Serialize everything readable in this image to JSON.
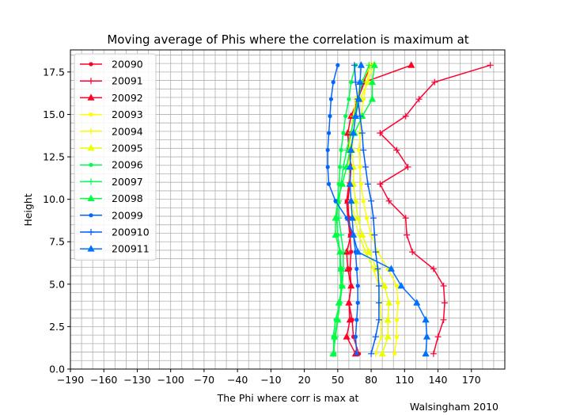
{
  "chart_data": {
    "type": "line",
    "title": "Moving average of Phis where the correlation is maximum at",
    "xlabel": "The Phi where corr is max at",
    "ylabel": "Height",
    "xlim": [
      -190,
      200
    ],
    "ylim": [
      0,
      18.8
    ],
    "x_ticks": [
      -190,
      -160,
      -130,
      -100,
      -70,
      -40,
      -10,
      20,
      50,
      80,
      110,
      140,
      170
    ],
    "y_ticks": [
      0.0,
      2.5,
      5.0,
      7.5,
      10.0,
      12.5,
      15.0,
      17.5
    ],
    "grid": true,
    "legend_position": "upper-left",
    "y": [
      0.9,
      1.9,
      2.9,
      3.9,
      4.9,
      5.9,
      6.9,
      7.9,
      8.9,
      9.9,
      10.9,
      11.9,
      12.9,
      13.9,
      14.9,
      15.9,
      16.9,
      17.9
    ],
    "series": [
      {
        "name": "20090",
        "color": "#ff0029",
        "marker": "dot",
        "x": [
          69,
          64,
          63,
          60,
          62,
          61,
          62,
          61,
          59,
          58,
          60,
          62,
          60,
          62,
          64,
          68,
          73,
          80
        ]
      },
      {
        "name": "20091",
        "color": "#ff0033",
        "marker": "plus",
        "x": [
          136,
          140,
          145,
          146,
          145,
          136,
          117,
          112,
          111,
          96,
          88,
          113,
          103,
          88,
          111,
          123,
          137,
          187
        ]
      },
      {
        "name": "20092",
        "color": "#ff0026",
        "marker": "triangle",
        "x": [
          66,
          58,
          61,
          60,
          62,
          59,
          58,
          62,
          60,
          59,
          61,
          62,
          60,
          59,
          62,
          68,
          74,
          116
        ]
      },
      {
        "name": "20093",
        "color": "#ffff00",
        "marker": "dot",
        "x": [
          101,
          103,
          103,
          104,
          103,
          95,
          86,
          80,
          76,
          73,
          71,
          70,
          69,
          70,
          71,
          73,
          76,
          79
        ]
      },
      {
        "name": "20094",
        "color": "#f5ff00",
        "marker": "plus",
        "x": [
          84,
          89,
          89,
          88,
          87,
          82,
          75,
          69,
          65,
          62,
          61,
          60,
          60,
          62,
          64,
          66,
          72,
          79
        ]
      },
      {
        "name": "20095",
        "color": "#eaff00",
        "marker": "triangle",
        "x": [
          90,
          95,
          95,
          96,
          92,
          85,
          78,
          72,
          68,
          66,
          64,
          64,
          63,
          64,
          66,
          70,
          77,
          82
        ]
      },
      {
        "name": "20096",
        "color": "#00ff4d",
        "marker": "dot",
        "x": [
          47,
          46,
          48,
          52,
          53,
          52,
          52,
          50,
          49,
          50,
          51,
          52,
          53,
          55,
          57,
          60,
          62,
          66
        ]
      },
      {
        "name": "20097",
        "color": "#00ff55",
        "marker": "plus",
        "x": [
          46,
          48,
          50,
          52,
          54,
          55,
          55,
          53,
          51,
          51,
          53,
          55,
          58,
          62,
          65,
          68,
          72,
          78
        ]
      },
      {
        "name": "20098",
        "color": "#00ff40",
        "marker": "triangle",
        "x": [
          46,
          47,
          50,
          51,
          54,
          53,
          52,
          48,
          48,
          50,
          54,
          58,
          61,
          65,
          72,
          81,
          81,
          83
        ]
      },
      {
        "name": "20099",
        "color": "#0066ff",
        "marker": "dot",
        "x": [
          67,
          66,
          67,
          68,
          68,
          67,
          66,
          64,
          58,
          48,
          42,
          41,
          41,
          42,
          43,
          44,
          46,
          50
        ]
      },
      {
        "name": "200910",
        "color": "#005cff",
        "marker": "plus",
        "x": [
          80,
          84,
          87,
          87,
          87,
          86,
          84,
          83,
          82,
          80,
          77,
          75,
          73,
          72,
          70,
          68,
          66,
          65
        ]
      },
      {
        "name": "200911",
        "color": "#0070ff",
        "marker": "triangle",
        "x": [
          129,
          130,
          129,
          121,
          107,
          98,
          68,
          64,
          63,
          62,
          61,
          61,
          62,
          64,
          66,
          69,
          70,
          71
        ]
      }
    ]
  },
  "credit": "Walsingham 2010"
}
